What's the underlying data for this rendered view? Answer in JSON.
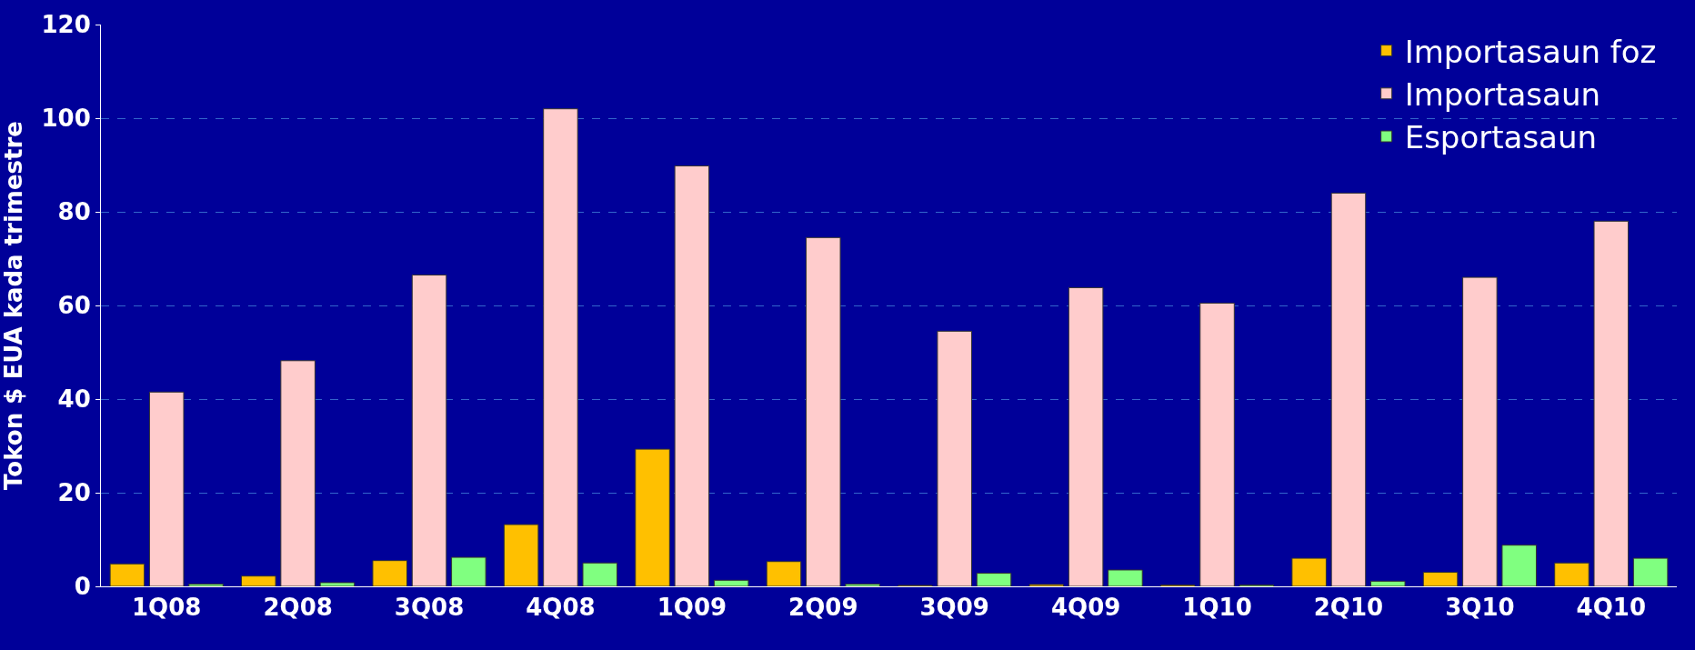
{
  "chart_data": {
    "type": "bar",
    "ylabel": "Tokon $ EUA kada trimestre",
    "categories": [
      "1Q08",
      "2Q08",
      "3Q08",
      "4Q08",
      "1Q09",
      "2Q09",
      "3Q09",
      "4Q09",
      "1Q10",
      "2Q10",
      "3Q10",
      "4Q10"
    ],
    "series": [
      {
        "name": "Importasaun foz",
        "color": "#ffc000",
        "values": [
          4.8,
          2.2,
          5.5,
          13.2,
          29.3,
          5.3,
          0.2,
          0.4,
          0.3,
          6,
          3,
          5
        ]
      },
      {
        "name": "Importasaun",
        "color": "#ffcccc",
        "values": [
          41.5,
          48.2,
          66.5,
          102,
          89.8,
          74.5,
          54.5,
          63.8,
          60.5,
          84,
          66,
          78
        ]
      },
      {
        "name": "Esportasaun",
        "color": "#80ff80",
        "values": [
          0.5,
          0.8,
          6.2,
          5,
          1.3,
          0.5,
          2.8,
          3.5,
          0.3,
          1.1,
          8.8,
          6
        ]
      }
    ],
    "ylim": [
      0,
      120
    ],
    "yticks": [
      0,
      20,
      40,
      60,
      80,
      100,
      120
    ],
    "grid": "y",
    "legend": "top right"
  }
}
